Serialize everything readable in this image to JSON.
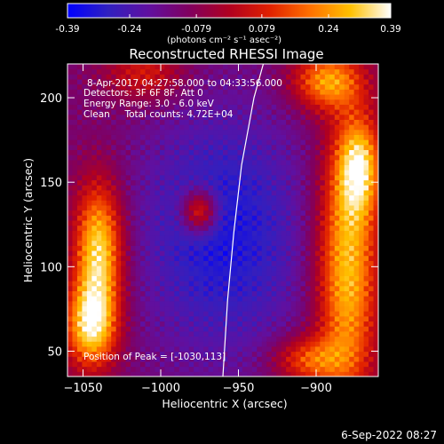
{
  "colorbar": {
    "ticks": [
      "-0.39",
      "-0.24",
      "-0.079",
      "0.079",
      "0.24",
      "0.39"
    ],
    "tick_values": [
      -0.39,
      -0.24,
      -0.079,
      0.079,
      0.24,
      0.39
    ],
    "unit_label": "(photons cm⁻² s⁻¹ asec⁻²)",
    "colors": [
      "#0000ff",
      "#3020c0",
      "#6010a0",
      "#800060",
      "#b00020",
      "#e02000",
      "#ff7000",
      "#ffc000",
      "#ffffff"
    ]
  },
  "chart_data": {
    "type": "heatmap",
    "title": "Reconstructed RHESSI Image",
    "xlabel": "Heliocentric X (arcsec)",
    "ylabel": "Heliocentric Y (arcsec)",
    "xlim": [
      -1060,
      -860
    ],
    "ylim": [
      35,
      220
    ],
    "x_ticks": [
      -1050,
      -1000,
      -950,
      -900
    ],
    "y_ticks": [
      50,
      100,
      150,
      200
    ],
    "peak": [
      -1030,
      113
    ],
    "limb_curve": [
      [
        -960,
        35
      ],
      [
        -957,
        80
      ],
      [
        -953,
        120
      ],
      [
        -948,
        160
      ],
      [
        -940,
        200
      ],
      [
        -934,
        220
      ]
    ],
    "regions": [
      {
        "name": "left-bright",
        "x": -1040,
        "y": 110,
        "level": 1.0
      },
      {
        "name": "right-bright",
        "x": -880,
        "y": 100,
        "level": 0.85
      },
      {
        "name": "central-source",
        "x": -975,
        "y": 133,
        "level": 0.7
      },
      {
        "name": "top-right-source",
        "x": -895,
        "y": 210,
        "level": 0.75
      },
      {
        "name": "bottom-right",
        "x": -910,
        "y": 45,
        "level": 0.65
      }
    ]
  },
  "annotations": {
    "line1": "8-Apr-2017 04:27:58.000 to 04:33:56.000",
    "line2": "Detectors: 3F 6F 8F, Att 0",
    "line3": "Energy Range: 3.0 - 6.0 keV",
    "line4": "Clean     Total counts: 4.72E+04",
    "peak": "Position of Peak = [-1030,113]"
  },
  "footer": {
    "date": "6-Sep-2022 08:27"
  }
}
